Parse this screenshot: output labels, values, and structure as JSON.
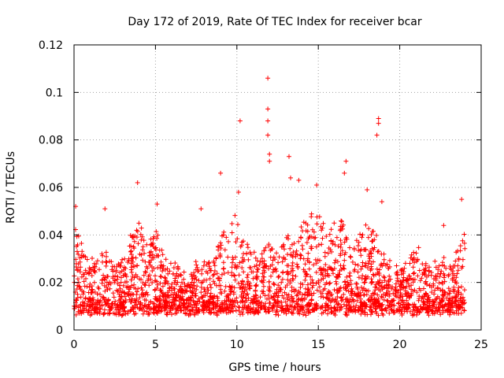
{
  "chart_data": {
    "type": "scatter",
    "title": "Day 172 of 2019, Rate Of TEC Index for receiver bcar",
    "xlabel": "GPS time / hours",
    "ylabel": "ROTI / TECUs",
    "xlim": [
      0,
      25
    ],
    "ylim": [
      0,
      0.12
    ],
    "xticks": [
      0,
      5,
      10,
      15,
      20,
      25
    ],
    "xtick_labels": [
      "0",
      "5",
      "10",
      "15",
      "20",
      "25"
    ],
    "yticks": [
      0,
      0.02,
      0.04,
      0.06,
      0.08,
      0.1,
      0.12
    ],
    "ytick_labels": [
      "0",
      "0.02",
      "0.04",
      "0.06",
      "0.08",
      "0.1",
      "0.12"
    ],
    "grid": true,
    "marker": "+",
    "color": "#ff0000",
    "series": [
      {
        "name": "ROTI",
        "x_range": [
          0,
          24
        ],
        "typical_band": [
          0.008,
          0.035
        ],
        "notable_points": [
          {
            "x": 0.1,
            "y": 0.052
          },
          {
            "x": 1.9,
            "y": 0.051
          },
          {
            "x": 3.9,
            "y": 0.062
          },
          {
            "x": 5.1,
            "y": 0.053
          },
          {
            "x": 7.8,
            "y": 0.051
          },
          {
            "x": 9.0,
            "y": 0.066
          },
          {
            "x": 10.1,
            "y": 0.058
          },
          {
            "x": 10.2,
            "y": 0.088
          },
          {
            "x": 11.9,
            "y": 0.106
          },
          {
            "x": 11.9,
            "y": 0.093
          },
          {
            "x": 11.9,
            "y": 0.088
          },
          {
            "x": 11.9,
            "y": 0.082
          },
          {
            "x": 12.0,
            "y": 0.074
          },
          {
            "x": 12.0,
            "y": 0.071
          },
          {
            "x": 13.2,
            "y": 0.073
          },
          {
            "x": 13.3,
            "y": 0.064
          },
          {
            "x": 13.8,
            "y": 0.063
          },
          {
            "x": 14.9,
            "y": 0.061
          },
          {
            "x": 16.7,
            "y": 0.071
          },
          {
            "x": 16.6,
            "y": 0.066
          },
          {
            "x": 18.0,
            "y": 0.059
          },
          {
            "x": 18.7,
            "y": 0.089
          },
          {
            "x": 18.7,
            "y": 0.087
          },
          {
            "x": 18.6,
            "y": 0.082
          },
          {
            "x": 18.9,
            "y": 0.054
          },
          {
            "x": 22.7,
            "y": 0.044
          },
          {
            "x": 23.8,
            "y": 0.055
          }
        ]
      }
    ]
  }
}
